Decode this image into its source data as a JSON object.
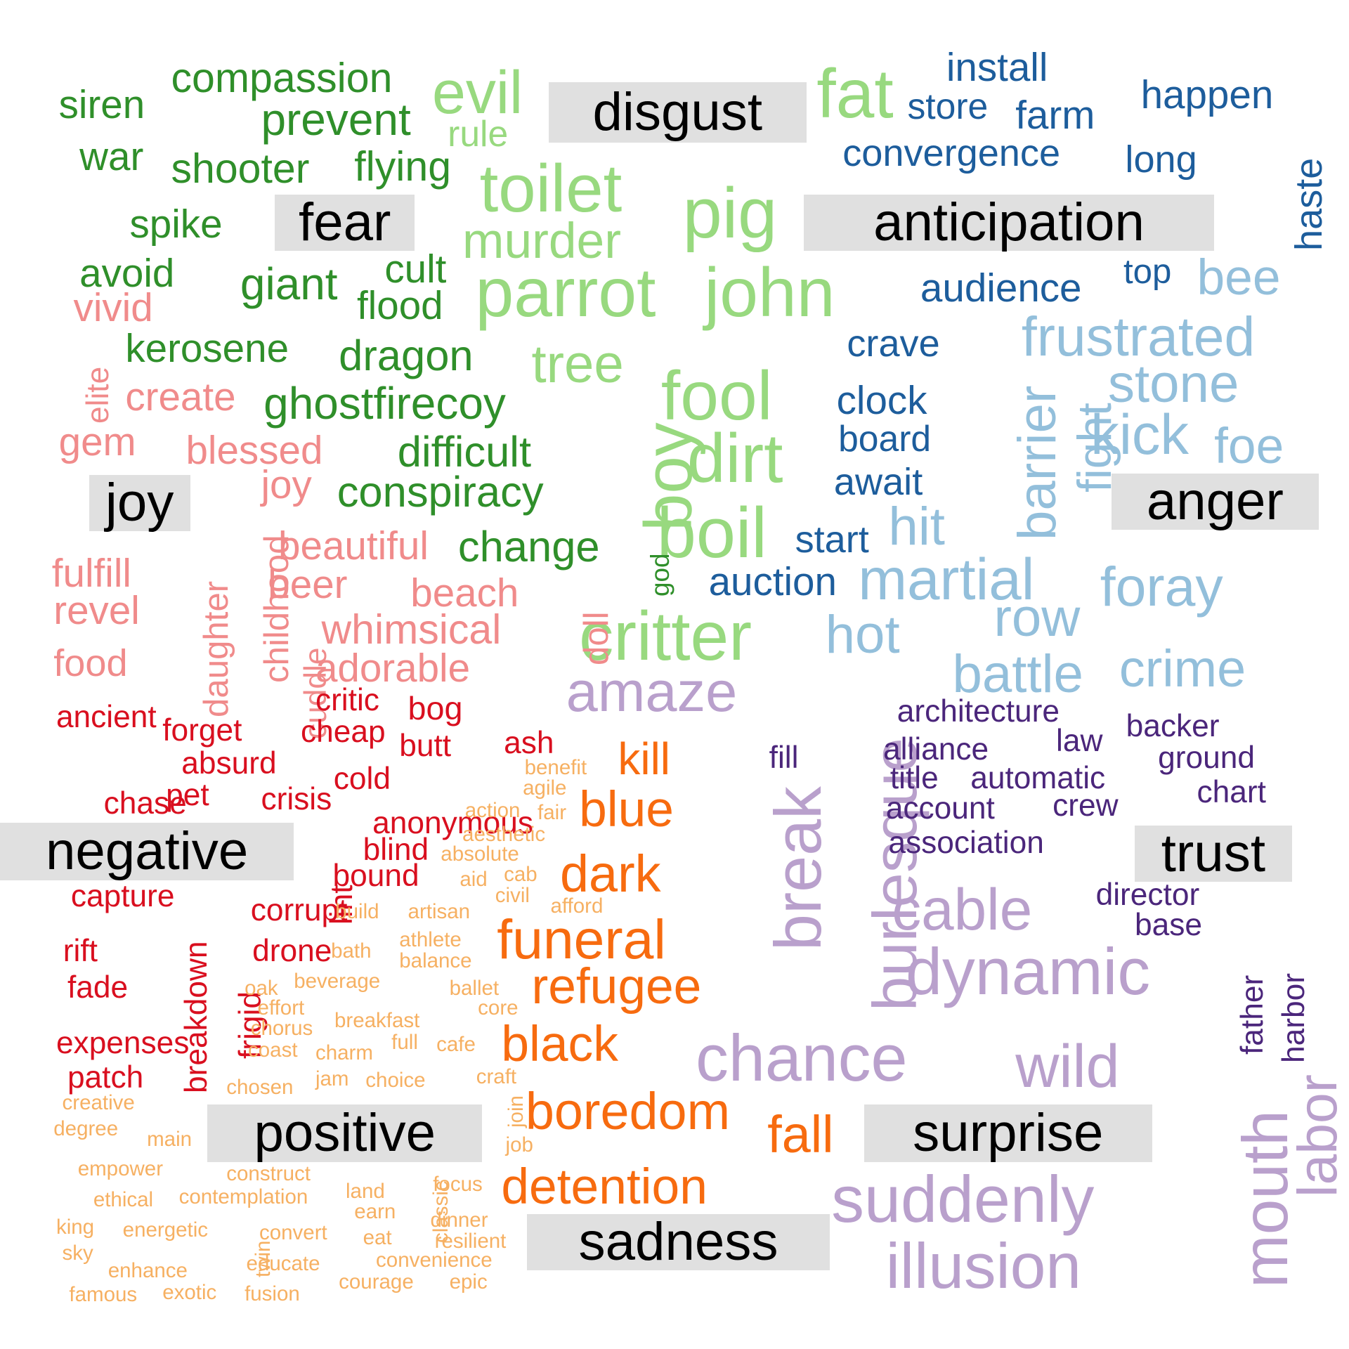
{
  "colors": {
    "disgust": "#98d97f",
    "fear": "#2f8f2a",
    "anticipation": "#1d5d9c",
    "anger": "#93bfdb",
    "joy": "#f08b8b",
    "negative": "#d90f1f",
    "positive": "#f6b062",
    "sadness": "#f76b0f",
    "surprise": "#b9a0cc",
    "trust": "#4b267b",
    "label_background": "#e0e0e0",
    "label_text": "#000000"
  },
  "labels": {
    "disgust": "disgust",
    "fear": "fear",
    "anticipation": "anticipation",
    "joy": "joy",
    "anger": "anger",
    "negative": "negative",
    "trust": "trust",
    "positive": "positive",
    "surprise": "surprise",
    "sadness": "sadness"
  },
  "words": {
    "disgust": [
      "evil",
      "rule",
      "fat",
      "toilet",
      "pig",
      "murder",
      "parrot",
      "john",
      "tree",
      "fool",
      "dirt",
      "boy",
      "boil",
      "critter"
    ],
    "fear": [
      "compassion",
      "siren",
      "prevent",
      "war",
      "shooter",
      "flying",
      "spike",
      "avoid",
      "giant",
      "cult",
      "flood",
      "kerosene",
      "dragon",
      "ghostfirecoy",
      "difficult",
      "conspiracy",
      "change",
      "god"
    ],
    "anticipation": [
      "install",
      "store",
      "farm",
      "happen",
      "convergence",
      "long",
      "haste",
      "audience",
      "top",
      "crave",
      "clock",
      "board",
      "await",
      "start",
      "auction"
    ],
    "anger": [
      "bee",
      "frustrated",
      "stone",
      "kick",
      "foe",
      "fight",
      "barrier",
      "hit",
      "martial",
      "foray",
      "row",
      "hot",
      "battle",
      "crime"
    ],
    "joy": [
      "vivid",
      "elite",
      "create",
      "gem",
      "blessed",
      "joy",
      "fulfill",
      "revel",
      "food",
      "daughter",
      "childhood",
      "beautiful",
      "beer",
      "cuddle",
      "beach",
      "whimsical",
      "adorable",
      "doll"
    ],
    "negative": [
      "critic",
      "bog",
      "ancient",
      "forget",
      "cheap",
      "butt",
      "ash",
      "absurd",
      "chase",
      "pet",
      "crisis",
      "cold",
      "anonymous",
      "blind",
      "lint",
      "bound",
      "capture",
      "corrupt",
      "rift",
      "drone",
      "fade",
      "frigid",
      "breakdown",
      "expenses",
      "patch",
      "flaunt"
    ],
    "positive": [
      "benefit",
      "agile",
      "action",
      "fair",
      "aesthetic",
      "absolute",
      "cab",
      "aid",
      "civil",
      "build",
      "artisan",
      "afford",
      "bath",
      "athlete",
      "balance",
      "oak",
      "beverage",
      "ballet",
      "effort",
      "core",
      "chorus",
      "breakfast",
      "coast",
      "charm",
      "full",
      "cafe",
      "chosen",
      "jam",
      "choice",
      "craft",
      "creative",
      "degree",
      "main",
      "join",
      "job",
      "empower",
      "construct",
      "ethical",
      "contemplation",
      "land",
      "earn",
      "classic",
      "focus",
      "king",
      "energetic",
      "convert",
      "dinner",
      "sky",
      "twin",
      "eat",
      "resilient",
      "enhance",
      "educate",
      "convenience",
      "famous",
      "exotic",
      "fusion",
      "courage",
      "epic"
    ],
    "sadness": [
      "kill",
      "blue",
      "dark",
      "funeral",
      "refugee",
      "black",
      "boredom",
      "fall",
      "detention"
    ],
    "surprise": [
      "amaze",
      "break",
      "burlesque",
      "cable",
      "dynamic",
      "chance",
      "wild",
      "suddenly",
      "illusion",
      "mouth",
      "labor"
    ],
    "trust": [
      "architecture",
      "backer",
      "alliance",
      "law",
      "fill",
      "ground",
      "title",
      "automatic",
      "chart",
      "account",
      "crew",
      "association",
      "director",
      "base",
      "father",
      "harbor"
    ]
  }
}
